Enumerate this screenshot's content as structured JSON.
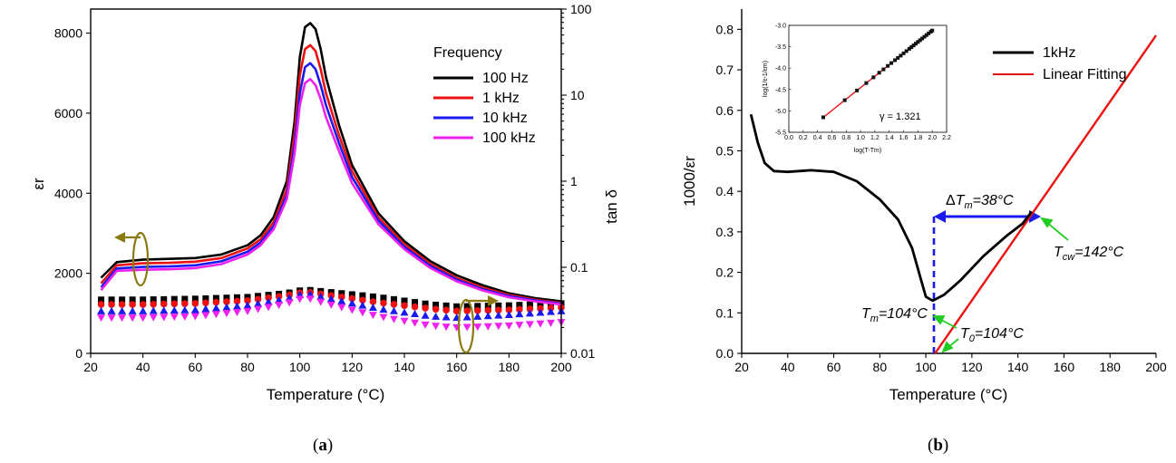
{
  "captions": {
    "a_open": "(",
    "a_letter": "a",
    "a_close": ")",
    "b_open": "(",
    "b_letter": "b",
    "b_close": ")"
  },
  "colors": {
    "black": "#000000",
    "red": "#ee1111",
    "blue": "#1a1aee",
    "magenta": "#ee22ee",
    "olive": "#8a7a10",
    "green": "#22cc22",
    "dashed_blue": "#1a1aee"
  },
  "chart_data": [
    {
      "panel": "a",
      "type": "line",
      "xlabel": "Temperature (°C)",
      "ylabel_left": "εr",
      "ylabel_right": "tan δ",
      "xlim": [
        20,
        200
      ],
      "ylim_left": [
        0,
        8600
      ],
      "ylim_right_log": [
        0.01,
        100
      ],
      "x_ticks": [
        20,
        40,
        60,
        80,
        100,
        120,
        140,
        160,
        180,
        200
      ],
      "y_left_ticks": [
        0,
        2000,
        4000,
        6000,
        8000
      ],
      "y_right_ticks": [
        0.01,
        0.1,
        1,
        10,
        100
      ],
      "y_right_tick_labels": [
        "0.01",
        "0.1",
        "1",
        "10",
        "100"
      ],
      "legend_title": "Frequency",
      "legend_position": "top-right",
      "series": [
        {
          "name": "100 Hz",
          "color": "#000000",
          "eps": [
            [
              24,
              1890
            ],
            [
              30,
              2280
            ],
            [
              40,
              2340
            ],
            [
              50,
              2360
            ],
            [
              60,
              2380
            ],
            [
              70,
              2470
            ],
            [
              80,
              2700
            ],
            [
              85,
              2950
            ],
            [
              90,
              3400
            ],
            [
              95,
              4300
            ],
            [
              98,
              5800
            ],
            [
              100,
              7400
            ],
            [
              102,
              8150
            ],
            [
              104,
              8250
            ],
            [
              106,
              8100
            ],
            [
              108,
              7600
            ],
            [
              110,
              6900
            ],
            [
              115,
              5700
            ],
            [
              120,
              4700
            ],
            [
              130,
              3500
            ],
            [
              140,
              2800
            ],
            [
              150,
              2300
            ],
            [
              160,
              1950
            ],
            [
              170,
              1700
            ],
            [
              180,
              1500
            ],
            [
              190,
              1380
            ],
            [
              200,
              1300
            ]
          ],
          "tan_delta": [
            [
              24,
              0.042
            ],
            [
              40,
              0.042
            ],
            [
              60,
              0.043
            ],
            [
              80,
              0.045
            ],
            [
              95,
              0.05
            ],
            [
              102,
              0.055
            ],
            [
              110,
              0.052
            ],
            [
              130,
              0.045
            ],
            [
              150,
              0.037
            ],
            [
              160,
              0.035
            ],
            [
              180,
              0.036
            ],
            [
              200,
              0.038
            ]
          ]
        },
        {
          "name": "1 kHz",
          "color": "#ee1111",
          "eps": [
            [
              24,
              1750
            ],
            [
              30,
              2200
            ],
            [
              40,
              2250
            ],
            [
              50,
              2260
            ],
            [
              60,
              2290
            ],
            [
              70,
              2380
            ],
            [
              80,
              2620
            ],
            [
              85,
              2850
            ],
            [
              90,
              3280
            ],
            [
              95,
              4100
            ],
            [
              98,
              5500
            ],
            [
              100,
              6950
            ],
            [
              102,
              7600
            ],
            [
              104,
              7700
            ],
            [
              106,
              7550
            ],
            [
              108,
              7100
            ],
            [
              110,
              6500
            ],
            [
              115,
              5450
            ],
            [
              120,
              4550
            ],
            [
              130,
              3400
            ],
            [
              140,
              2720
            ],
            [
              150,
              2230
            ],
            [
              160,
              1880
            ],
            [
              170,
              1640
            ],
            [
              180,
              1460
            ],
            [
              190,
              1340
            ],
            [
              200,
              1260
            ]
          ],
          "tan_delta": [
            [
              24,
              0.037
            ],
            [
              40,
              0.037
            ],
            [
              60,
              0.038
            ],
            [
              80,
              0.041
            ],
            [
              95,
              0.047
            ],
            [
              102,
              0.052
            ],
            [
              110,
              0.048
            ],
            [
              130,
              0.039
            ],
            [
              150,
              0.033
            ],
            [
              160,
              0.031
            ],
            [
              180,
              0.032
            ],
            [
              200,
              0.034
            ]
          ]
        },
        {
          "name": "10 kHz",
          "color": "#1a1aee",
          "eps": [
            [
              24,
              1650
            ],
            [
              30,
              2120
            ],
            [
              40,
              2160
            ],
            [
              50,
              2170
            ],
            [
              60,
              2200
            ],
            [
              70,
              2300
            ],
            [
              80,
              2540
            ],
            [
              85,
              2770
            ],
            [
              90,
              3180
            ],
            [
              95,
              3950
            ],
            [
              98,
              5200
            ],
            [
              100,
              6500
            ],
            [
              102,
              7150
            ],
            [
              104,
              7250
            ],
            [
              106,
              7100
            ],
            [
              108,
              6700
            ],
            [
              110,
              6200
            ],
            [
              115,
              5250
            ],
            [
              120,
              4400
            ],
            [
              130,
              3320
            ],
            [
              140,
              2660
            ],
            [
              150,
              2180
            ],
            [
              160,
              1840
            ],
            [
              170,
              1600
            ],
            [
              180,
              1430
            ],
            [
              190,
              1320
            ],
            [
              200,
              1240
            ]
          ],
          "tan_delta": [
            [
              24,
              0.031
            ],
            [
              40,
              0.031
            ],
            [
              60,
              0.032
            ],
            [
              80,
              0.036
            ],
            [
              95,
              0.043
            ],
            [
              102,
              0.05
            ],
            [
              110,
              0.044
            ],
            [
              130,
              0.033
            ],
            [
              150,
              0.027
            ],
            [
              160,
              0.026
            ],
            [
              180,
              0.028
            ],
            [
              200,
              0.031
            ]
          ]
        },
        {
          "name": "100 kHz",
          "color": "#ee22ee",
          "eps": [
            [
              24,
              1580
            ],
            [
              30,
              2060
            ],
            [
              40,
              2090
            ],
            [
              50,
              2100
            ],
            [
              60,
              2130
            ],
            [
              70,
              2230
            ],
            [
              80,
              2470
            ],
            [
              85,
              2700
            ],
            [
              90,
              3100
            ],
            [
              95,
              3850
            ],
            [
              98,
              5000
            ],
            [
              100,
              6200
            ],
            [
              102,
              6750
            ],
            [
              104,
              6850
            ],
            [
              106,
              6700
            ],
            [
              108,
              6350
            ],
            [
              110,
              5900
            ],
            [
              115,
              5050
            ],
            [
              120,
              4250
            ],
            [
              130,
              3230
            ],
            [
              140,
              2600
            ],
            [
              150,
              2130
            ],
            [
              160,
              1800
            ],
            [
              170,
              1570
            ],
            [
              180,
              1400
            ],
            [
              190,
              1300
            ],
            [
              200,
              1220
            ]
          ],
          "tan_delta": [
            [
              24,
              0.026
            ],
            [
              40,
              0.026
            ],
            [
              60,
              0.027
            ],
            [
              80,
              0.031
            ],
            [
              95,
              0.038
            ],
            [
              102,
              0.045
            ],
            [
              110,
              0.038
            ],
            [
              130,
              0.027
            ],
            [
              150,
              0.021
            ],
            [
              160,
              0.02
            ],
            [
              180,
              0.021
            ],
            [
              200,
              0.023
            ]
          ]
        }
      ]
    },
    {
      "panel": "b",
      "type": "line",
      "xlabel": "Temperature (°C)",
      "ylabel": "1000/εr",
      "xlim": [
        20,
        200
      ],
      "ylim": [
        0,
        0.85
      ],
      "x_ticks": [
        20,
        40,
        60,
        80,
        100,
        120,
        140,
        160,
        180,
        200
      ],
      "y_ticks": [
        0.0,
        0.1,
        0.2,
        0.3,
        0.4,
        0.5,
        0.6,
        0.7,
        0.8
      ],
      "y_tick_labels": [
        "0.0",
        "0.1",
        "0.2",
        "0.3",
        "0.4",
        "0.5",
        "0.6",
        "0.7",
        "0.8"
      ],
      "legend_position": "top-right",
      "series": [
        {
          "name": "1kHz",
          "color": "#000000",
          "points": [
            [
              24,
              0.59
            ],
            [
              27,
              0.52
            ],
            [
              30,
              0.47
            ],
            [
              34,
              0.45
            ],
            [
              40,
              0.448
            ],
            [
              50,
              0.452
            ],
            [
              60,
              0.448
            ],
            [
              70,
              0.425
            ],
            [
              80,
              0.38
            ],
            [
              88,
              0.33
            ],
            [
              94,
              0.26
            ],
            [
              98,
              0.18
            ],
            [
              100,
              0.14
            ],
            [
              103,
              0.13
            ],
            [
              108,
              0.145
            ],
            [
              115,
              0.18
            ],
            [
              125,
              0.24
            ],
            [
              135,
              0.29
            ],
            [
              142,
              0.32
            ],
            [
              146,
              0.35
            ]
          ]
        },
        {
          "name": "Linear Fitting",
          "color": "#ee1111",
          "points": [
            [
              104,
              0.0
            ],
            [
              200,
              0.785
            ]
          ]
        }
      ],
      "annotations": {
        "delta_prefix": "Δ",
        "delta_T": "T",
        "delta_sub": "m",
        "delta_val": "=38°C",
        "tcw_T": "T",
        "tcw_sub": "cw",
        "tcw_val": "=142°C",
        "tm_T": "T",
        "tm_sub": "m",
        "tm_val": "=104°C",
        "t0_T": "T",
        "t0_sub": "0",
        "t0_val": "=104°C"
      },
      "inset": {
        "xlabel": "log(T-Tm)",
        "ylabel": "log(1/ε-1/εm)",
        "xlim": [
          0.0,
          2.2
        ],
        "ylim": [
          -5.5,
          -3.0
        ],
        "x_ticks": [
          0.0,
          0.2,
          0.4,
          0.6,
          0.8,
          1.0,
          1.2,
          1.4,
          1.6,
          1.8,
          2.0,
          2.2
        ],
        "x_tick_labels": [
          "0.0",
          "0.2",
          "0.4",
          "0.6",
          "0.8",
          "1.0",
          "1.2",
          "1.4",
          "1.6",
          "1.8",
          "2.0",
          "2.2"
        ],
        "y_ticks": [
          -5.5,
          -5.0,
          -4.5,
          -4.0,
          -3.5,
          -3.0
        ],
        "y_tick_labels": [
          "-5.5",
          "-5.0",
          "-4.5",
          "-4.0",
          "-3.5",
          "-3.0"
        ],
        "gamma_label": "γ = 1.321",
        "fit_line": [
          [
            0.48,
            -5.15
          ],
          [
            2.0,
            -3.12
          ]
        ],
        "points_x": [
          0.48,
          0.78,
          0.95,
          1.08,
          1.18,
          1.26,
          1.32,
          1.38,
          1.43,
          1.48,
          1.52,
          1.56,
          1.6,
          1.64,
          1.68,
          1.71,
          1.74,
          1.77,
          1.8,
          1.83,
          1.86,
          1.89,
          1.92,
          1.95,
          1.98,
          2.0
        ]
      }
    }
  ]
}
